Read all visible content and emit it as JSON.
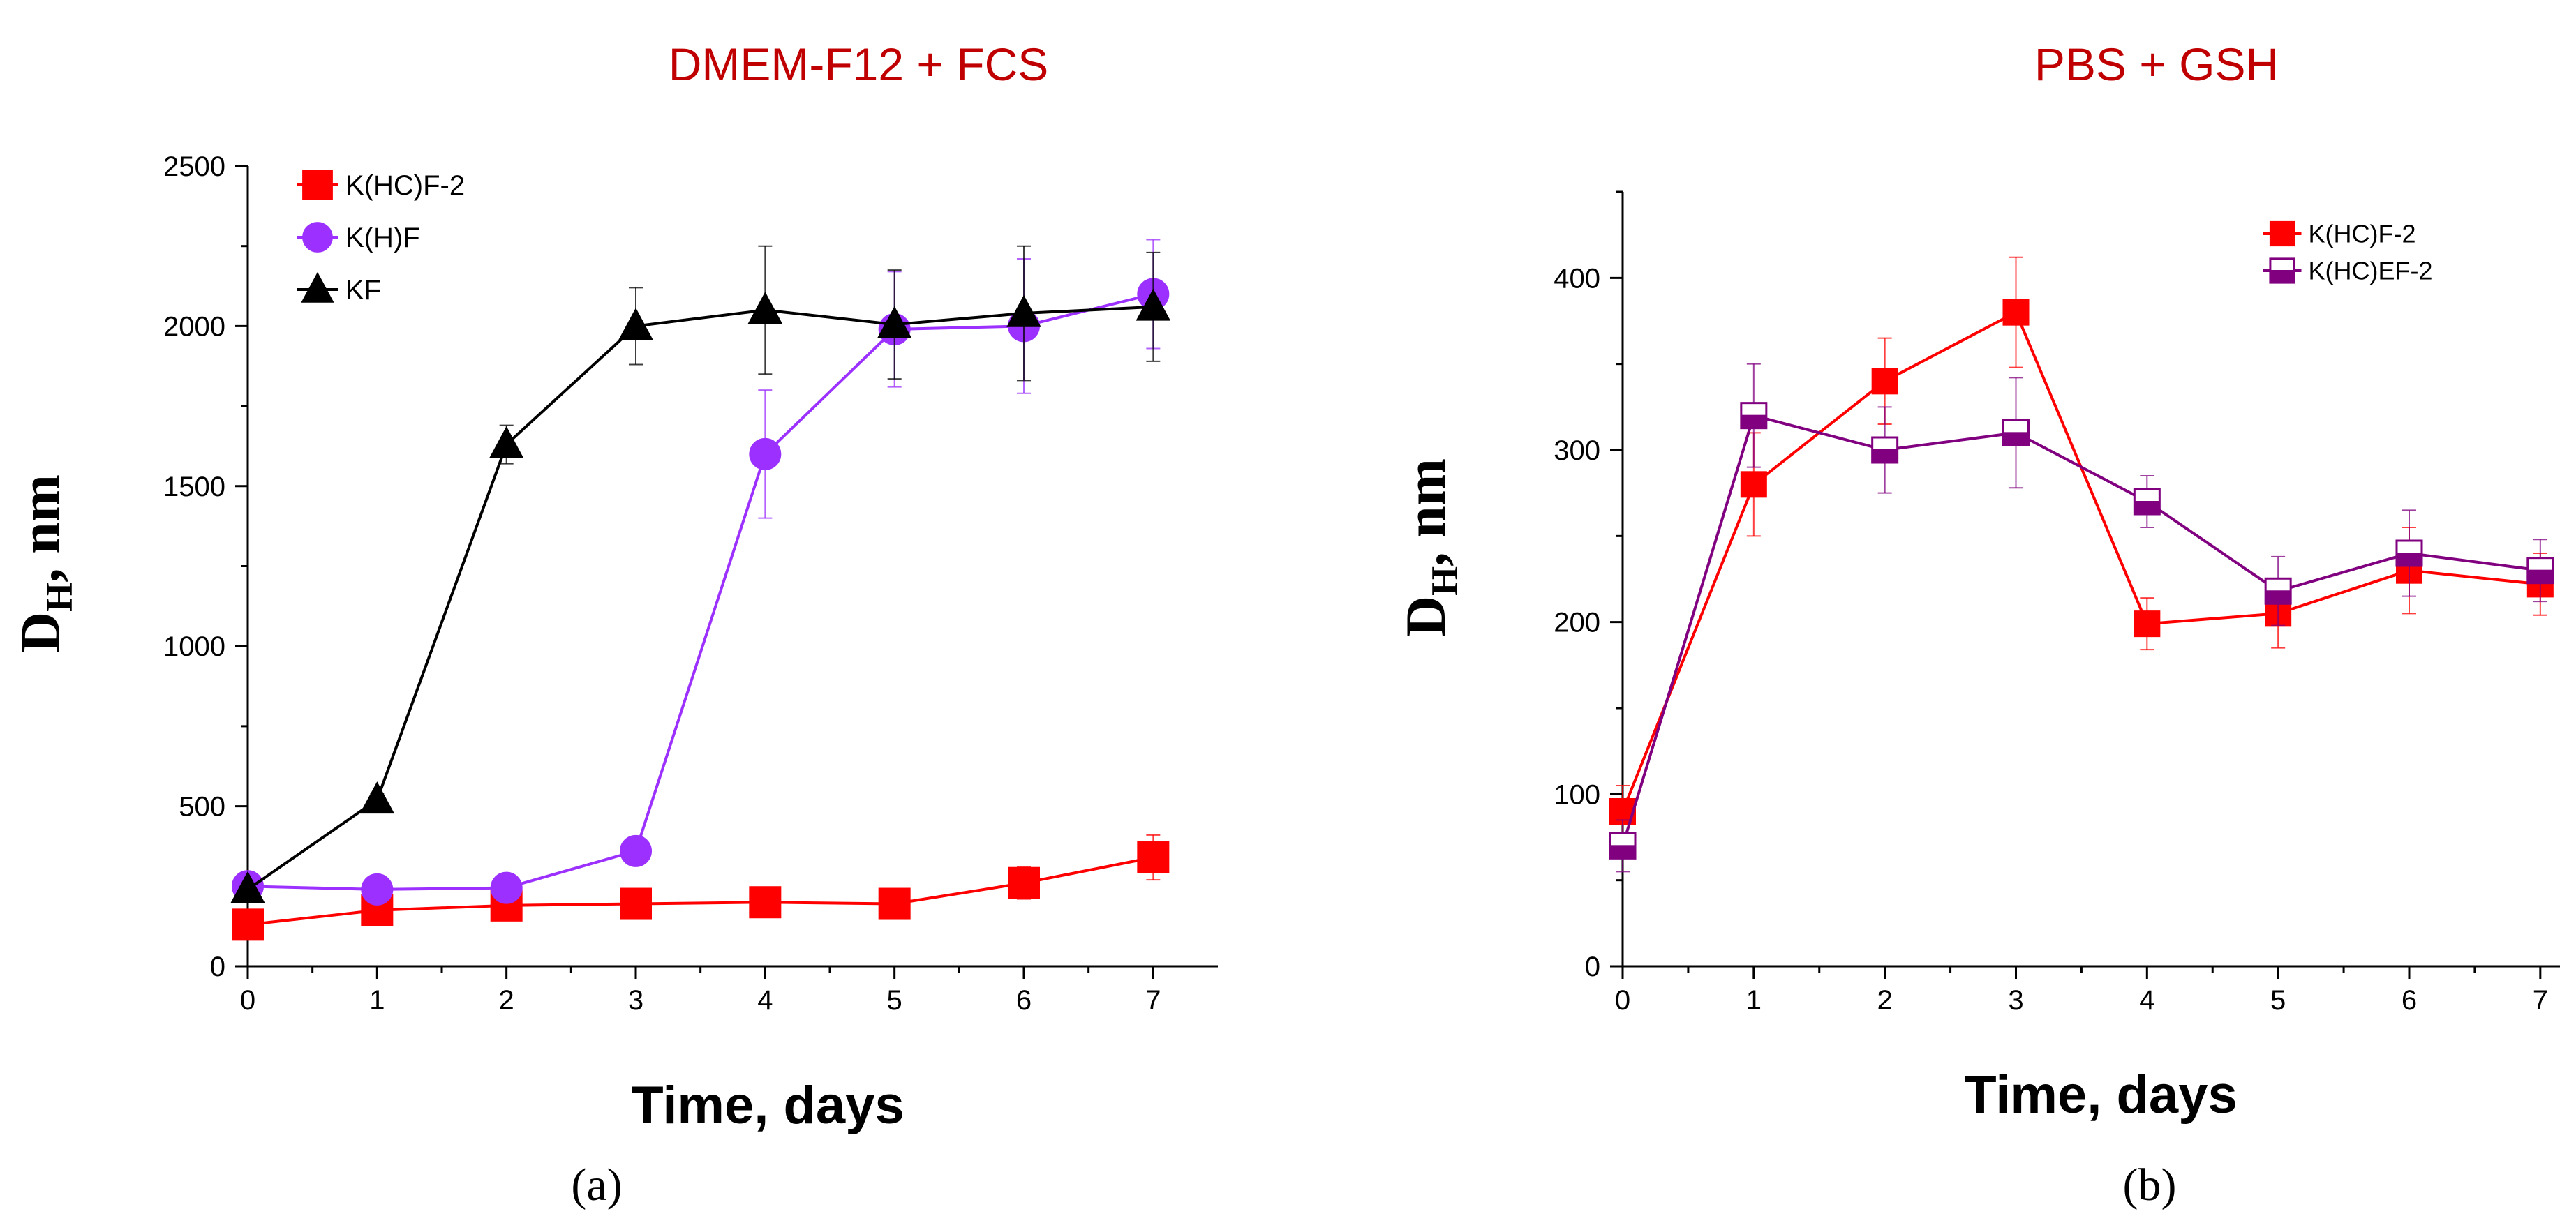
{
  "colors": {
    "title": "#c00000",
    "axis": "#000000",
    "series_kf": "#000000",
    "series_khcf2": "#ff0000",
    "series_khf": "#9b30ff",
    "series_khcef2": "#800080"
  },
  "chart_data": [
    {
      "type": "line",
      "title": "DMEM-F12 + FCS",
      "xlabel": "Time, days",
      "ylabel_main": "D",
      "ylabel_sub": "H",
      "ylabel_rest": ", nm",
      "panel_label": "(a)",
      "xlim": [
        0,
        7.5
      ],
      "ylim": [
        0,
        2500
      ],
      "xticks": [
        0,
        1,
        2,
        3,
        4,
        5,
        6,
        7
      ],
      "yticks": [
        0,
        500,
        1000,
        1500,
        2000,
        2500
      ],
      "legend_position": "top-left",
      "series": [
        {
          "name": "K(HC)F-2",
          "marker": "square",
          "color": "#ff0000",
          "x": [
            0,
            1,
            2,
            3,
            4,
            5,
            6,
            7
          ],
          "y": [
            130,
            175,
            190,
            195,
            200,
            195,
            260,
            340
          ],
          "err": [
            15,
            10,
            15,
            15,
            20,
            15,
            50,
            70
          ]
        },
        {
          "name": "K(H)F",
          "marker": "circle",
          "color": "#9b30ff",
          "x": [
            0,
            1,
            2,
            3,
            4,
            5,
            6,
            7
          ],
          "y": [
            250,
            240,
            245,
            360,
            1600,
            1990,
            2000,
            2100
          ],
          "err": [
            15,
            10,
            15,
            20,
            200,
            180,
            210,
            170
          ]
        },
        {
          "name": "KF",
          "marker": "triangle",
          "color": "#000000",
          "x": [
            0,
            1,
            2,
            3,
            4,
            5,
            6,
            7
          ],
          "y": [
            240,
            520,
            1630,
            2000,
            2050,
            2005,
            2040,
            2060
          ],
          "err": [
            15,
            20,
            60,
            120,
            200,
            170,
            210,
            170
          ]
        }
      ]
    },
    {
      "type": "line",
      "title": "PBS + GSH",
      "xlabel": "Time, days",
      "ylabel_main": "D",
      "ylabel_sub": "H",
      "ylabel_rest": ", nm",
      "panel_label": "(b)",
      "xlim": [
        0,
        7.15
      ],
      "ylim": [
        0,
        450
      ],
      "xticks": [
        0,
        1,
        2,
        3,
        4,
        5,
        6,
        7
      ],
      "yticks": [
        0,
        100,
        200,
        300,
        400
      ],
      "legend_position": "top-right",
      "series": [
        {
          "name": "K(HC)F-2",
          "marker": "square",
          "color": "#ff0000",
          "x": [
            0,
            1,
            2,
            3,
            4,
            5,
            6,
            7
          ],
          "y": [
            90,
            280,
            340,
            380,
            199,
            205,
            230,
            222
          ],
          "err": [
            15,
            30,
            25,
            32,
            15,
            20,
            25,
            18
          ]
        },
        {
          "name": "K(HC)EF-2",
          "marker": "half-square",
          "color": "#800080",
          "x": [
            0,
            1,
            2,
            3,
            4,
            5,
            6,
            7
          ],
          "y": [
            70,
            320,
            300,
            310,
            270,
            218,
            240,
            230
          ],
          "err": [
            15,
            30,
            25,
            32,
            15,
            20,
            25,
            18
          ]
        }
      ]
    }
  ]
}
